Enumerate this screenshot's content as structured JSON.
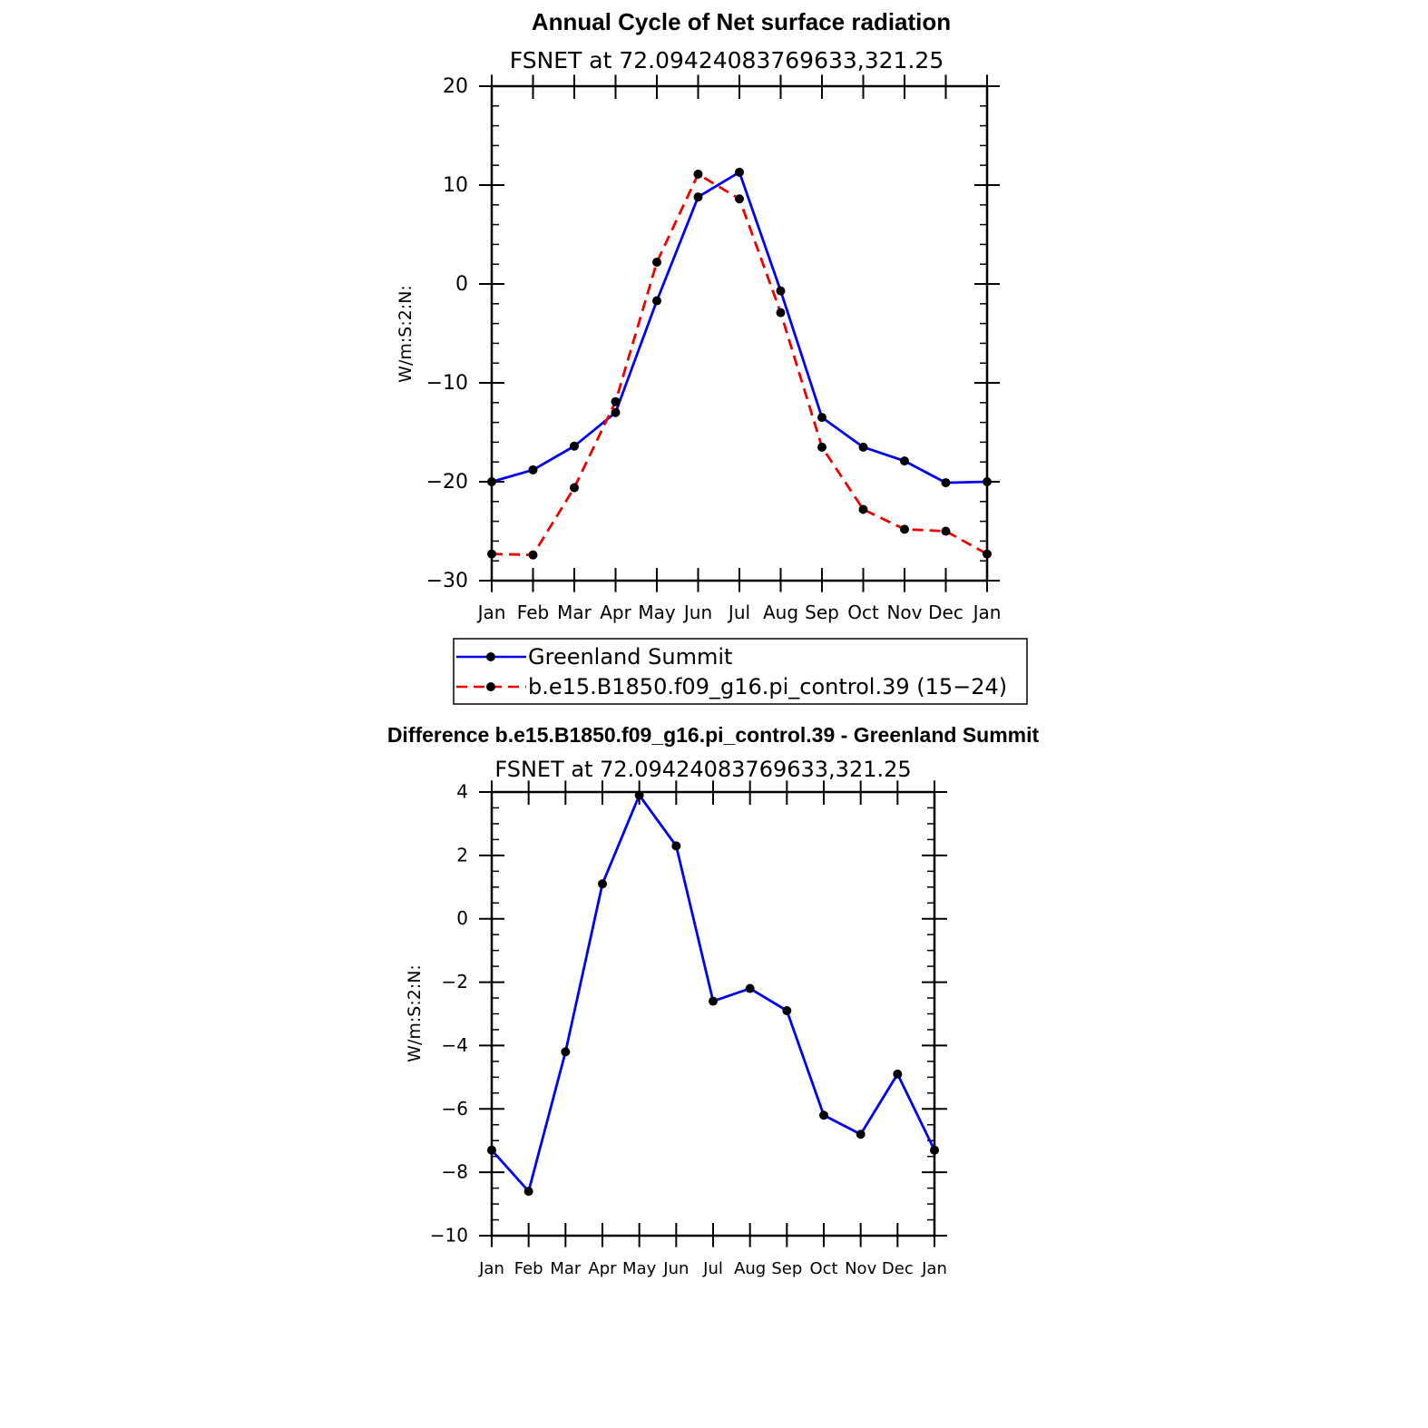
{
  "chart_data": [
    {
      "type": "line",
      "title": "Annual Cycle of Net surface radiation",
      "subtitle": "FSNET at 72.09424083769633,321.25",
      "ylabel": "W/m:S:2:N:",
      "categories": [
        "Jan",
        "Feb",
        "Mar",
        "Apr",
        "May",
        "Jun",
        "Jul",
        "Aug",
        "Sep",
        "Oct",
        "Nov",
        "Dec",
        "Jan"
      ],
      "ylim": [
        -30,
        20
      ],
      "yticks": [
        -30,
        -20,
        -10,
        0,
        10,
        20
      ],
      "ytick_labels": [
        "−30",
        "−20",
        "−10",
        "0",
        "10",
        "20"
      ],
      "series": [
        {
          "name": "Greenland Summit",
          "color": "#0000ee",
          "dash": "solid",
          "values": [
            -20.0,
            -18.8,
            -16.4,
            -13.0,
            -1.7,
            8.8,
            11.3,
            -0.7,
            -13.5,
            -16.5,
            -17.9,
            -20.1,
            -20.0
          ]
        },
        {
          "name": "b.e15.B1850.f09_g16.pi_control.39 (15−24)",
          "color": "#ee0000",
          "dash": "dashed",
          "values": [
            -27.3,
            -27.4,
            -20.6,
            -11.9,
            2.2,
            11.1,
            8.6,
            -2.9,
            -16.5,
            -22.8,
            -24.8,
            -25.0,
            -27.3
          ]
        }
      ],
      "legend": "bottom"
    },
    {
      "type": "line",
      "title": "Difference b.e15.B1850.f09_g16.pi_control.39 - Greenland Summit",
      "subtitle": "FSNET at 72.09424083769633,321.25",
      "ylabel": "W/m:S:2:N:",
      "categories": [
        "Jan",
        "Feb",
        "Mar",
        "Apr",
        "May",
        "Jun",
        "Jul",
        "Aug",
        "Sep",
        "Oct",
        "Nov",
        "Dec",
        "Jan"
      ],
      "ylim": [
        -10,
        4
      ],
      "yticks": [
        -10,
        -8,
        -6,
        -4,
        -2,
        0,
        2,
        4
      ],
      "ytick_labels": [
        "−10",
        "−8",
        "−6",
        "−4",
        "−2",
        "0",
        "2",
        "4"
      ],
      "series": [
        {
          "name": "",
          "color": "#0000ee",
          "dash": "solid",
          "values": [
            -7.3,
            -8.6,
            -4.2,
            1.1,
            3.9,
            2.3,
            -2.6,
            -2.2,
            -2.9,
            -6.2,
            -6.8,
            -4.9,
            -7.3
          ]
        }
      ]
    }
  ]
}
